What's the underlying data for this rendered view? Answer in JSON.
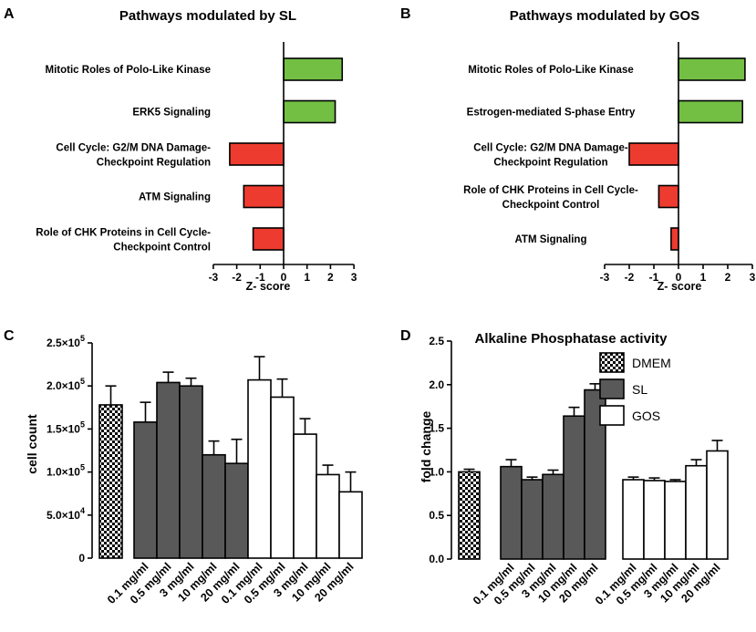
{
  "chart_data": [
    {
      "panel": "A",
      "type": "bar",
      "orientation": "horizontal",
      "title": "Pathways modulated by SL",
      "xlabel": "Z- score",
      "xlim": [
        -3,
        3
      ],
      "ticks": [
        "-3",
        "-2",
        "-1",
        "0",
        "1",
        "2",
        "3"
      ],
      "categories": [
        [
          "Mitotic Roles of Polo-Like Kinase"
        ],
        [
          "ERK5 Signaling"
        ],
        [
          "Cell Cycle: G2/M DNA Damage-",
          "Checkpoint Regulation"
        ],
        [
          "ATM Signaling"
        ],
        [
          "Role of CHK Proteins in Cell Cycle-",
          "Checkpoint Control"
        ]
      ],
      "values": [
        2.5,
        2.2,
        -2.3,
        -1.7,
        -1.3
      ]
    },
    {
      "panel": "B",
      "type": "bar",
      "orientation": "horizontal",
      "title": "Pathways modulated by GOS",
      "xlabel": "Z- score",
      "xlim": [
        -3,
        3
      ],
      "ticks": [
        "-3",
        "-2",
        "-1",
        "0",
        "1",
        "2",
        "3"
      ],
      "categories": [
        [
          "Mitotic Roles of Polo-Like Kinase"
        ],
        [
          "Estrogen-mediated S-phase Entry"
        ],
        [
          "Cell Cycle: G2/M DNA Damage-",
          "Checkpoint Regulation"
        ],
        [
          "Role of CHK Proteins in Cell Cycle-",
          "Checkpoint Control"
        ],
        [
          "ATM Signaling"
        ]
      ],
      "values": [
        2.7,
        2.6,
        -2.0,
        -0.8,
        -0.3
      ]
    },
    {
      "panel": "C",
      "type": "bar",
      "title": "",
      "ylabel": "cell count",
      "ylim": [
        0,
        250000
      ],
      "yticks": [
        {
          "v": 0,
          "m": "0",
          "e": ""
        },
        {
          "v": 50000,
          "m": "5.0×10",
          "e": "4"
        },
        {
          "v": 100000,
          "m": "1.0×10",
          "e": "5"
        },
        {
          "v": 150000,
          "m": "1.5×10",
          "e": "5"
        },
        {
          "v": 200000,
          "m": "2.0×10",
          "e": "5"
        },
        {
          "v": 250000,
          "m": "2.5×10",
          "e": "5"
        }
      ],
      "groups": [
        {
          "name": "DMEM",
          "values": [
            178000
          ],
          "errors": [
            22000
          ],
          "labels": [
            ""
          ]
        },
        {
          "name": "SL",
          "values": [
            158000,
            204000,
            200000,
            120000,
            110000
          ],
          "errors": [
            23000,
            12000,
            9000,
            16000,
            28000
          ],
          "labels": [
            "0.1 mg/ml",
            "0.5 mg/ml",
            "3 mg/ml",
            "10 mg/ml",
            "20 mg/ml"
          ]
        },
        {
          "name": "GOS",
          "values": [
            207000,
            187000,
            144000,
            97000,
            77000
          ],
          "errors": [
            27000,
            21000,
            18000,
            11000,
            23000
          ],
          "labels": [
            "0.1 mg/ml",
            "0.5 mg/ml",
            "3 mg/ml",
            "10 mg/ml",
            "20 mg/ml"
          ]
        }
      ]
    },
    {
      "panel": "D",
      "type": "bar",
      "title": "Alkaline Phosphatase activity",
      "ylabel": "fold change",
      "ylim": [
        0,
        2.5
      ],
      "yticks": [
        {
          "v": 0,
          "m": "0.0",
          "e": ""
        },
        {
          "v": 0.5,
          "m": "0.5",
          "e": ""
        },
        {
          "v": 1.0,
          "m": "1.0",
          "e": ""
        },
        {
          "v": 1.5,
          "m": "1.5",
          "e": ""
        },
        {
          "v": 2.0,
          "m": "2.0",
          "e": ""
        },
        {
          "v": 2.5,
          "m": "2.5",
          "e": ""
        }
      ],
      "groups": [
        {
          "name": "DMEM",
          "values": [
            1.0
          ],
          "errors": [
            0.03
          ],
          "labels": [
            ""
          ]
        },
        {
          "name": "SL",
          "values": [
            1.06,
            0.91,
            0.97,
            1.64,
            1.94
          ],
          "errors": [
            0.08,
            0.03,
            0.05,
            0.1,
            0.07
          ],
          "labels": [
            "0.1 mg/ml",
            "0.5 mg/ml",
            "3 mg/ml",
            "10 mg/ml",
            "20 mg/ml"
          ]
        },
        {
          "name": "GOS",
          "values": [
            0.91,
            0.9,
            0.89,
            1.07,
            1.24
          ],
          "errors": [
            0.03,
            0.03,
            0.02,
            0.07,
            0.12
          ],
          "labels": [
            "0.1 mg/ml",
            "0.5 mg/ml",
            "3 mg/ml",
            "10 mg/ml",
            "20 mg/ml"
          ]
        }
      ],
      "legend": [
        "DMEM",
        "SL",
        "GOS"
      ]
    }
  ],
  "colors": {
    "positive": "#72bf44",
    "negative": "#ee3b2f",
    "sl": "#595959",
    "gos": "#ffffff",
    "outline": "#000000"
  }
}
